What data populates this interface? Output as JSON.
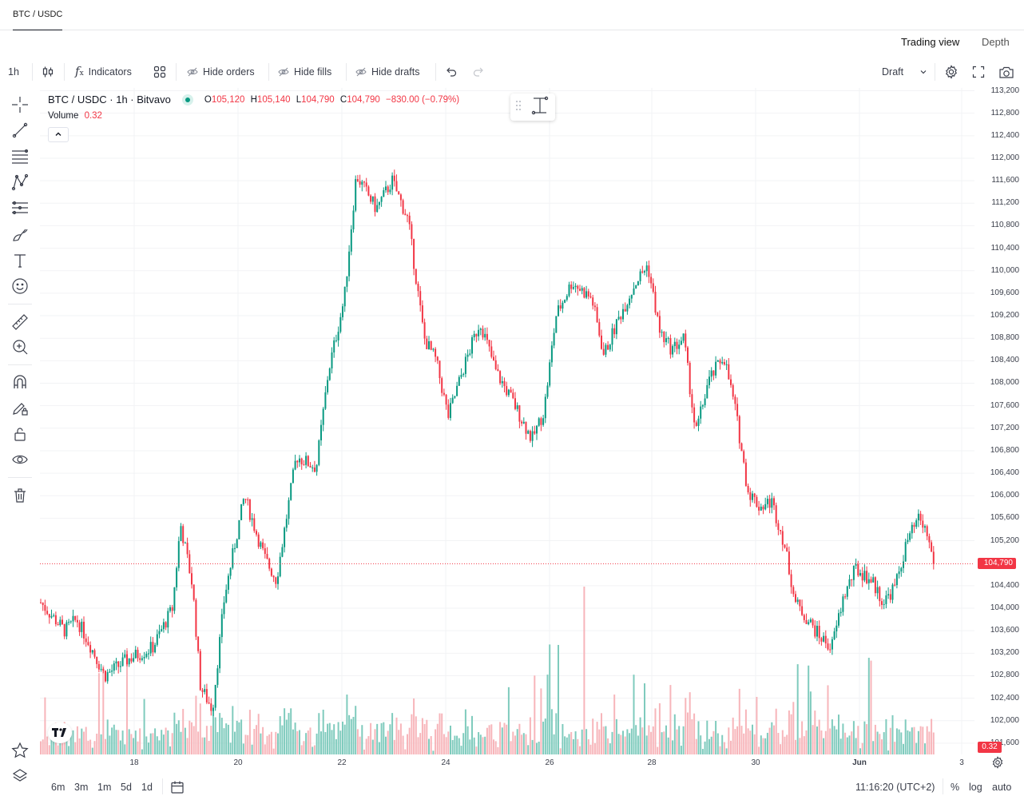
{
  "tab": {
    "label": "BTC / USDC"
  },
  "view_tabs": [
    {
      "label": "Trading view"
    },
    {
      "label": "Depth"
    }
  ],
  "toolbar": {
    "interval": "1h",
    "indicators": "Indicators",
    "hide_orders": "Hide orders",
    "hide_fills": "Hide fills",
    "hide_drafts": "Hide drafts",
    "draft": "Draft"
  },
  "legend": {
    "title": "BTC / USDC · 1h · Bitvavo",
    "o_label": "O",
    "o": "105,120",
    "h_label": "H",
    "h": "105,140",
    "l_label": "L",
    "l": "104,790",
    "c_label": "C",
    "c": "104,790",
    "change": "−830.00 (−0.79%)",
    "volume_label": "Volume",
    "volume": "0.32"
  },
  "left_tools": [
    "crosshair-icon",
    "trend-line-icon",
    "fib-icon",
    "pattern-icon",
    "projection-icon",
    "brush-icon",
    "text-icon",
    "emoji-icon",
    "ruler-icon",
    "zoom-in-icon",
    "magnet-icon",
    "lock-draw-icon",
    "lock-icon",
    "eye-icon",
    "trash-icon"
  ],
  "price_axis": [
    "113,200",
    "112,800",
    "112,400",
    "112,000",
    "111,600",
    "111,200",
    "110,800",
    "110,400",
    "110,000",
    "109,600",
    "109,200",
    "108,800",
    "108,400",
    "108,000",
    "107,600",
    "107,200",
    "106,800",
    "106,400",
    "106,000",
    "105,600",
    "105,200",
    "104,790",
    "104,400",
    "104,000",
    "103,600",
    "103,200",
    "102,800",
    "102,400",
    "102,000",
    "101,600",
    "0.32"
  ],
  "time_axis": [
    "18",
    "20",
    "22",
    "24",
    "26",
    "28",
    "30",
    "Jun",
    "3"
  ],
  "bottom": {
    "ranges": [
      "6m",
      "3m",
      "1m",
      "5d",
      "1d"
    ],
    "clock": "11:16:20 (UTC+2)",
    "percent": "%",
    "log": "log",
    "auto": "auto"
  },
  "colors": {
    "up": "#089981",
    "down": "#f23645",
    "up_vol": "#7fcbbd",
    "down_vol": "#f7b5ba",
    "accent": "#089981"
  },
  "chart_data": {
    "type": "candlestick",
    "title": "BTC / USDC · 1h · Bitvavo",
    "last_price": 104790,
    "ylim": [
      101400,
      113250
    ],
    "x_range": [
      "May 16",
      "Jun 2"
    ],
    "path": [
      {
        "t": 0,
        "p": 104100
      },
      {
        "t": 30,
        "p": 103600
      },
      {
        "t": 45,
        "p": 103800
      },
      {
        "t": 60,
        "p": 103400
      },
      {
        "t": 80,
        "p": 102800
      },
      {
        "t": 110,
        "p": 103100
      },
      {
        "t": 140,
        "p": 103300
      },
      {
        "t": 165,
        "p": 104000
      },
      {
        "t": 175,
        "p": 105500
      },
      {
        "t": 190,
        "p": 104400
      },
      {
        "t": 200,
        "p": 102600
      },
      {
        "t": 215,
        "p": 102200
      },
      {
        "t": 230,
        "p": 104200
      },
      {
        "t": 255,
        "p": 106000
      },
      {
        "t": 280,
        "p": 104900
      },
      {
        "t": 295,
        "p": 104500
      },
      {
        "t": 320,
        "p": 106700
      },
      {
        "t": 345,
        "p": 106500
      },
      {
        "t": 360,
        "p": 108200
      },
      {
        "t": 380,
        "p": 109500
      },
      {
        "t": 395,
        "p": 111700
      },
      {
        "t": 420,
        "p": 111100
      },
      {
        "t": 440,
        "p": 111600
      },
      {
        "t": 460,
        "p": 110900
      },
      {
        "t": 480,
        "p": 108800
      },
      {
        "t": 495,
        "p": 108400
      },
      {
        "t": 510,
        "p": 107400
      },
      {
        "t": 530,
        "p": 108300
      },
      {
        "t": 550,
        "p": 109100
      },
      {
        "t": 570,
        "p": 108200
      },
      {
        "t": 590,
        "p": 107700
      },
      {
        "t": 615,
        "p": 107000
      },
      {
        "t": 630,
        "p": 107500
      },
      {
        "t": 645,
        "p": 109200
      },
      {
        "t": 665,
        "p": 109800
      },
      {
        "t": 690,
        "p": 109500
      },
      {
        "t": 705,
        "p": 108500
      },
      {
        "t": 725,
        "p": 109200
      },
      {
        "t": 745,
        "p": 109800
      },
      {
        "t": 760,
        "p": 110100
      },
      {
        "t": 775,
        "p": 108900
      },
      {
        "t": 790,
        "p": 108600
      },
      {
        "t": 805,
        "p": 108800
      },
      {
        "t": 820,
        "p": 107100
      },
      {
        "t": 835,
        "p": 108000
      },
      {
        "t": 855,
        "p": 108500
      },
      {
        "t": 870,
        "p": 107500
      },
      {
        "t": 885,
        "p": 106100
      },
      {
        "t": 900,
        "p": 105800
      },
      {
        "t": 915,
        "p": 105900
      },
      {
        "t": 930,
        "p": 105200
      },
      {
        "t": 945,
        "p": 104100
      },
      {
        "t": 960,
        "p": 103800
      },
      {
        "t": 975,
        "p": 103500
      },
      {
        "t": 990,
        "p": 103300
      },
      {
        "t": 1005,
        "p": 104200
      },
      {
        "t": 1020,
        "p": 104700
      },
      {
        "t": 1040,
        "p": 104500
      },
      {
        "t": 1055,
        "p": 104100
      },
      {
        "t": 1070,
        "p": 104400
      },
      {
        "t": 1085,
        "p": 105200
      },
      {
        "t": 1100,
        "p": 105600
      },
      {
        "t": 1110,
        "p": 105300
      },
      {
        "t": 1118,
        "p": 104790
      }
    ]
  }
}
